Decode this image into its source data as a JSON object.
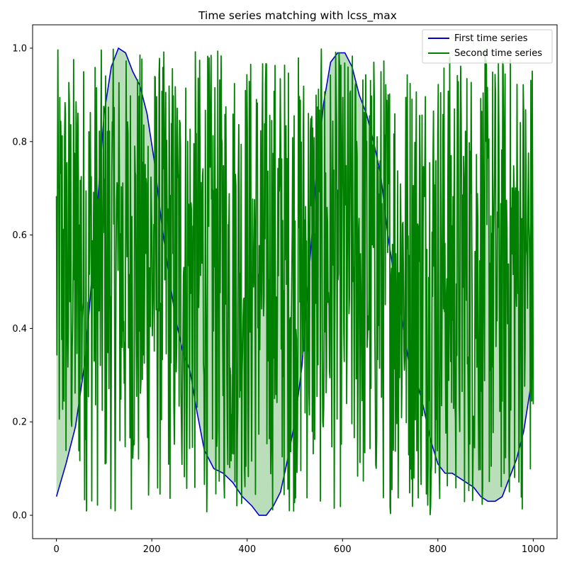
{
  "chart_data": {
    "type": "line",
    "title": "Time series matching with lcss_max",
    "xlabel": "",
    "ylabel": "",
    "xlim": [
      -50,
      1050
    ],
    "ylim": [
      -0.05,
      1.05
    ],
    "xticks": [
      0,
      200,
      400,
      600,
      800,
      1000
    ],
    "yticks": [
      0.0,
      0.2,
      0.4,
      0.6,
      0.8,
      1.0
    ],
    "xtick_labels": [
      "0",
      "200",
      "400",
      "600",
      "800",
      "1000"
    ],
    "ytick_labels": [
      "0.0",
      "0.2",
      "0.4",
      "0.6",
      "0.8",
      "1.0"
    ],
    "grid": false,
    "legend_position": "top-right",
    "fill_between": true,
    "series": [
      {
        "name": "First time series",
        "color": "#0000cc",
        "x": [
          0,
          20,
          40,
          60,
          80,
          100,
          115,
          130,
          145,
          160,
          175,
          190,
          205,
          220,
          235,
          250,
          265,
          280,
          295,
          310,
          330,
          350,
          370,
          390,
          410,
          425,
          440,
          455,
          470,
          485,
          500,
          515,
          530,
          545,
          560,
          575,
          590,
          605,
          620,
          635,
          650,
          665,
          680,
          695,
          710,
          725,
          740,
          755,
          770,
          785,
          800,
          815,
          830,
          845,
          860,
          875,
          890,
          905,
          920,
          935,
          950,
          965,
          980,
          1000
        ],
        "values": [
          0.04,
          0.11,
          0.19,
          0.33,
          0.58,
          0.86,
          0.96,
          1.0,
          0.99,
          0.95,
          0.92,
          0.86,
          0.76,
          0.63,
          0.52,
          0.42,
          0.35,
          0.31,
          0.22,
          0.14,
          0.1,
          0.09,
          0.07,
          0.04,
          0.02,
          0.0,
          0.0,
          0.02,
          0.05,
          0.12,
          0.2,
          0.32,
          0.52,
          0.73,
          0.88,
          0.97,
          0.99,
          0.99,
          0.96,
          0.9,
          0.86,
          0.8,
          0.73,
          0.6,
          0.5,
          0.42,
          0.32,
          0.29,
          0.23,
          0.16,
          0.11,
          0.09,
          0.09,
          0.08,
          0.07,
          0.06,
          0.04,
          0.03,
          0.03,
          0.04,
          0.08,
          0.12,
          0.18,
          0.31
        ]
      },
      {
        "name": "Second time series",
        "color": "#008000",
        "x_range": [
          0,
          1000
        ],
        "n_points": 1000,
        "value_range": [
          0.0,
          1.0
        ],
        "description": "noisy random values spanning the full range"
      }
    ]
  }
}
